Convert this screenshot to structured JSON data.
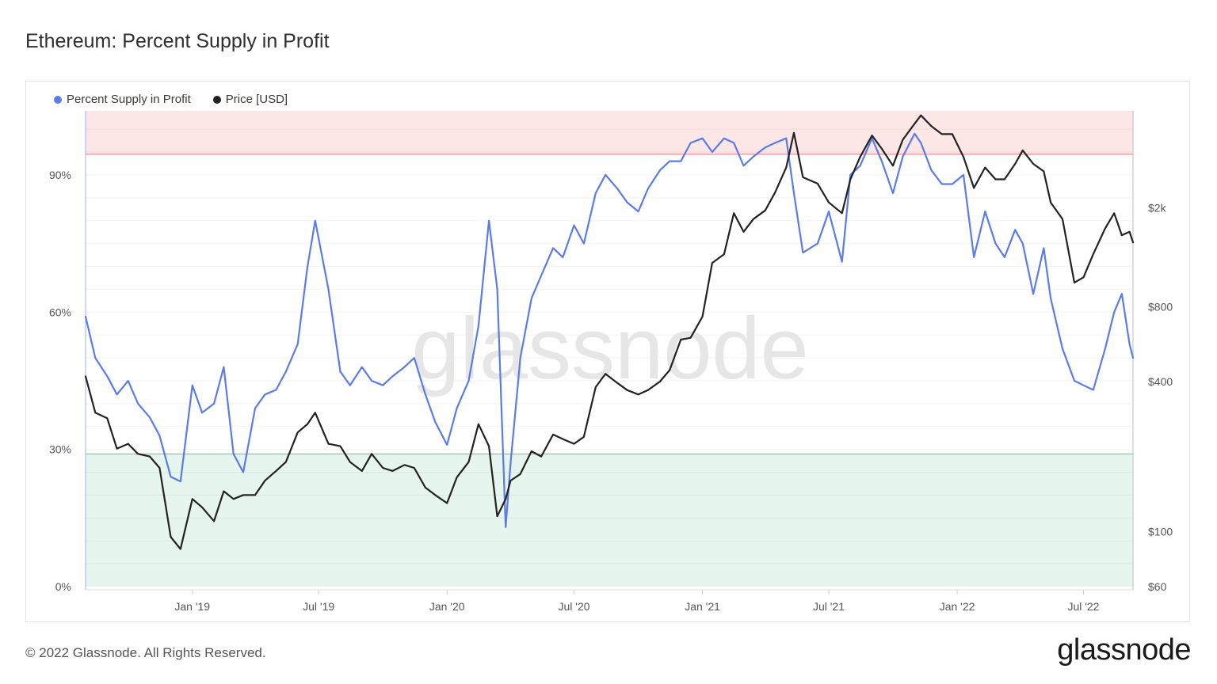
{
  "title": "Ethereum: Percent Supply in Profit",
  "footer": "© 2022 Glassnode. All Rights Reserved.",
  "brand": "glassnode",
  "watermark": "glassnode",
  "chart_data": {
    "type": "line",
    "legend": [
      {
        "label": "Percent Supply in Profit",
        "color": "#5b7be8"
      },
      {
        "label": "Price [USD]",
        "color": "#222222"
      }
    ],
    "x_range": [
      "2018-08-01",
      "2022-09-10"
    ],
    "x_ticks": [
      "Jan '19",
      "Jul '19",
      "Jan '20",
      "Jul '20",
      "Jan '21",
      "Jul '21",
      "Jan '22",
      "Jul '22"
    ],
    "left_axis": {
      "ticks": [
        "0%",
        "30%",
        "60%",
        "90%"
      ],
      "values": [
        0,
        30,
        60,
        90
      ],
      "ylim": [
        0,
        104
      ]
    },
    "right_axis": {
      "scale": "log",
      "ticks": [
        "$60",
        "$100",
        "$400",
        "$800",
        "$2k"
      ],
      "values": [
        60,
        100,
        400,
        800,
        2000
      ],
      "ylim": [
        60,
        4900
      ]
    },
    "bands": [
      {
        "name": "upper",
        "from": 94.5,
        "to": 104,
        "color": "#fde6e6",
        "line": "#f08d8d"
      },
      {
        "name": "lower",
        "from": 0,
        "to": 29,
        "color": "#e6f6ee",
        "line": "#6cc7a3"
      }
    ],
    "series": [
      {
        "name": "Percent Supply in Profit",
        "axis": "left",
        "color": "#5b7be8",
        "x": [
          "2018-08-01",
          "2018-08-15",
          "2018-09-01",
          "2018-09-15",
          "2018-10-01",
          "2018-10-15",
          "2018-11-01",
          "2018-11-15",
          "2018-12-01",
          "2018-12-15",
          "2019-01-01",
          "2019-01-15",
          "2019-02-01",
          "2019-02-15",
          "2019-03-01",
          "2019-03-15",
          "2019-04-01",
          "2019-04-15",
          "2019-05-01",
          "2019-05-15",
          "2019-06-01",
          "2019-06-15",
          "2019-06-26",
          "2019-07-15",
          "2019-08-01",
          "2019-08-15",
          "2019-09-01",
          "2019-09-15",
          "2019-10-01",
          "2019-10-15",
          "2019-11-01",
          "2019-11-15",
          "2019-12-01",
          "2019-12-15",
          "2020-01-01",
          "2020-01-15",
          "2020-02-01",
          "2020-02-15",
          "2020-03-01",
          "2020-03-13",
          "2020-03-25",
          "2020-04-01",
          "2020-04-15",
          "2020-05-01",
          "2020-05-15",
          "2020-06-01",
          "2020-06-15",
          "2020-07-01",
          "2020-07-15",
          "2020-08-01",
          "2020-08-15",
          "2020-09-01",
          "2020-09-15",
          "2020-10-01",
          "2020-10-15",
          "2020-11-01",
          "2020-11-15",
          "2020-12-01",
          "2020-12-15",
          "2021-01-01",
          "2021-01-15",
          "2021-02-01",
          "2021-02-15",
          "2021-03-01",
          "2021-03-15",
          "2021-04-01",
          "2021-04-15",
          "2021-05-01",
          "2021-05-12",
          "2021-05-25",
          "2021-06-15",
          "2021-07-01",
          "2021-07-20",
          "2021-08-01",
          "2021-08-15",
          "2021-09-01",
          "2021-09-15",
          "2021-10-01",
          "2021-10-15",
          "2021-11-01",
          "2021-11-10",
          "2021-11-25",
          "2021-12-10",
          "2021-12-25",
          "2022-01-10",
          "2022-01-25",
          "2022-02-10",
          "2022-02-25",
          "2022-03-10",
          "2022-03-25",
          "2022-04-05",
          "2022-04-20",
          "2022-05-05",
          "2022-05-15",
          "2022-06-01",
          "2022-06-18",
          "2022-07-01",
          "2022-07-15",
          "2022-08-01",
          "2022-08-14",
          "2022-08-25",
          "2022-09-05",
          "2022-09-10"
        ],
        "values": [
          59,
          50,
          46,
          42,
          45,
          40,
          37,
          33,
          24,
          23,
          44,
          38,
          40,
          48,
          29,
          25,
          39,
          42,
          43,
          47,
          53,
          70,
          80,
          65,
          47,
          44,
          48,
          45,
          44,
          46,
          48,
          50,
          42,
          36,
          31,
          39,
          45,
          57,
          80,
          65,
          13,
          27,
          50,
          63,
          68,
          74,
          72,
          79,
          75,
          86,
          90,
          87,
          84,
          82,
          87,
          91,
          93,
          93,
          97,
          98,
          95,
          98,
          97,
          92,
          94,
          96,
          97,
          98,
          86,
          73,
          75,
          82,
          71,
          90,
          92,
          98,
          93,
          86,
          94,
          99,
          97,
          91,
          88,
          88,
          90,
          72,
          82,
          75,
          72,
          78,
          75,
          64,
          74,
          63,
          52,
          45,
          44,
          43,
          52,
          60,
          64,
          53,
          50
        ]
      },
      {
        "name": "Price [USD]",
        "axis": "right",
        "color": "#222222",
        "x": [
          "2018-08-01",
          "2018-08-15",
          "2018-09-01",
          "2018-09-15",
          "2018-10-01",
          "2018-10-15",
          "2018-11-01",
          "2018-11-15",
          "2018-12-01",
          "2018-12-15",
          "2019-01-01",
          "2019-01-15",
          "2019-02-01",
          "2019-02-15",
          "2019-03-01",
          "2019-03-15",
          "2019-04-01",
          "2019-04-15",
          "2019-05-01",
          "2019-05-15",
          "2019-06-01",
          "2019-06-15",
          "2019-06-26",
          "2019-07-15",
          "2019-08-01",
          "2019-08-15",
          "2019-09-01",
          "2019-09-15",
          "2019-10-01",
          "2019-10-15",
          "2019-11-01",
          "2019-11-15",
          "2019-12-01",
          "2019-12-15",
          "2020-01-01",
          "2020-01-15",
          "2020-02-01",
          "2020-02-15",
          "2020-03-01",
          "2020-03-13",
          "2020-03-25",
          "2020-04-01",
          "2020-04-15",
          "2020-05-01",
          "2020-05-15",
          "2020-06-01",
          "2020-06-15",
          "2020-07-01",
          "2020-07-15",
          "2020-08-01",
          "2020-08-15",
          "2020-09-01",
          "2020-09-15",
          "2020-10-01",
          "2020-10-15",
          "2020-11-01",
          "2020-11-15",
          "2020-12-01",
          "2020-12-15",
          "2021-01-01",
          "2021-01-15",
          "2021-02-01",
          "2021-02-15",
          "2021-03-01",
          "2021-03-15",
          "2021-04-01",
          "2021-04-15",
          "2021-05-01",
          "2021-05-12",
          "2021-05-25",
          "2021-06-15",
          "2021-07-01",
          "2021-07-20",
          "2021-08-01",
          "2021-08-15",
          "2021-09-01",
          "2021-09-15",
          "2021-10-01",
          "2021-10-15",
          "2021-11-01",
          "2021-11-10",
          "2021-11-25",
          "2021-12-10",
          "2021-12-25",
          "2022-01-10",
          "2022-01-25",
          "2022-02-10",
          "2022-02-25",
          "2022-03-10",
          "2022-03-25",
          "2022-04-05",
          "2022-04-20",
          "2022-05-05",
          "2022-05-15",
          "2022-06-01",
          "2022-06-18",
          "2022-07-01",
          "2022-07-15",
          "2022-08-01",
          "2022-08-14",
          "2022-08-25",
          "2022-09-05",
          "2022-09-10"
        ],
        "values": [
          420,
          300,
          285,
          215,
          225,
          205,
          200,
          180,
          95,
          85,
          135,
          125,
          110,
          145,
          135,
          140,
          140,
          160,
          175,
          190,
          250,
          270,
          300,
          225,
          220,
          190,
          175,
          205,
          180,
          175,
          185,
          180,
          150,
          140,
          130,
          165,
          190,
          270,
          220,
          115,
          135,
          160,
          170,
          210,
          200,
          245,
          235,
          225,
          240,
          380,
          430,
          395,
          370,
          355,
          370,
          400,
          445,
          590,
          600,
          730,
          1200,
          1300,
          1900,
          1600,
          1800,
          1950,
          2300,
          2900,
          4000,
          2650,
          2500,
          2100,
          1900,
          2600,
          3200,
          3900,
          3450,
          2950,
          3750,
          4350,
          4700,
          4250,
          3950,
          3950,
          3200,
          2400,
          2900,
          2600,
          2600,
          3000,
          3400,
          3000,
          2800,
          2100,
          1800,
          1000,
          1050,
          1300,
          1650,
          1900,
          1550,
          1600,
          1450
        ]
      }
    ]
  }
}
